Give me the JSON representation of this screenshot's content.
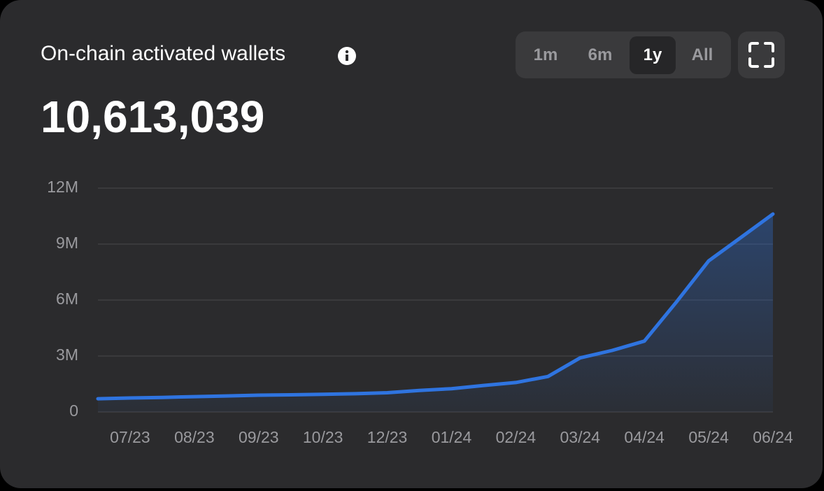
{
  "header": {
    "title": "On-chain activated wallets",
    "total": "10,613,039"
  },
  "controls": {
    "ranges": [
      "1m",
      "6m",
      "1y",
      "All"
    ],
    "active": 2
  },
  "chart_data": {
    "type": "line",
    "color": "#2f74e0",
    "grid": true,
    "area": true,
    "categories": [
      null,
      "07/23",
      null,
      "08/23",
      null,
      "09/23",
      null,
      "10/23",
      null,
      "12/23",
      null,
      "01/24",
      null,
      "02/24",
      null,
      "03/24",
      null,
      "04/24",
      null,
      "05/24",
      null,
      "06/24"
    ],
    "values": [
      710000,
      750000,
      780000,
      820000,
      860000,
      900000,
      920000,
      950000,
      980000,
      1030000,
      1150000,
      1250000,
      1420000,
      1580000,
      1900000,
      2900000,
      3300000,
      3800000,
      5900000,
      8100000,
      9350000,
      10613039
    ],
    "ylim": [
      0,
      12000000
    ],
    "yticks": [
      0,
      {
        "value": 3000000,
        "label": "3M"
      },
      {
        "value": 6000000,
        "label": "6M"
      },
      {
        "value": 9000000,
        "label": "9M"
      },
      {
        "value": 12000000,
        "label": "12M"
      }
    ]
  }
}
